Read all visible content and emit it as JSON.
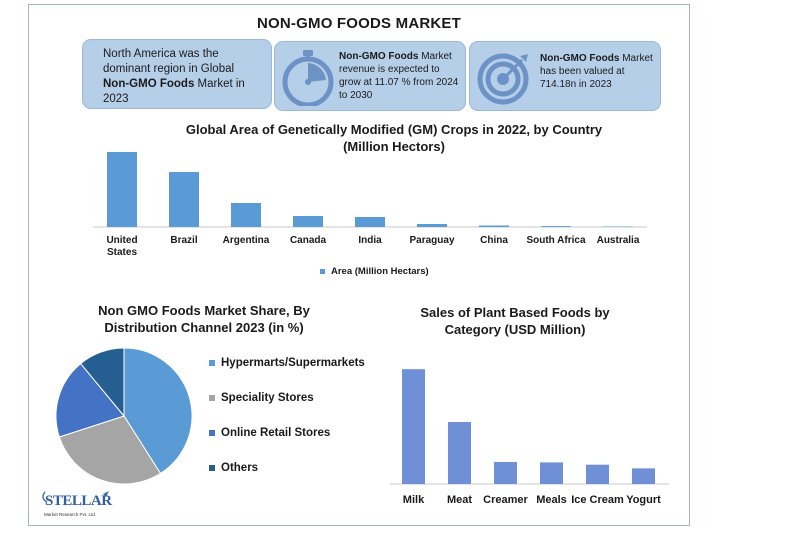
{
  "title": "NON-GMO FOODS MARKET",
  "cards": [
    {
      "prefix": "North America was the dominant region in Global ",
      "bold": "Non-GMO Foods",
      "suffix": " Market in 2023",
      "icon": "none"
    },
    {
      "prefix": "",
      "bold": "Non-GMO Foods",
      "suffix": " Market revenue is expected to grow at 11.07 % from 2024 to 2030",
      "icon": "stopwatch-icon"
    },
    {
      "prefix": "",
      "bold": "Non-GMO Foods",
      "suffix": " Market has been valued at 714.18n in 2023",
      "icon": "target-icon"
    }
  ],
  "colors": {
    "bar_primary": "#5b9bd5",
    "bar_secondary": "#6f8fd6",
    "card_bg": "#b6cfe9",
    "hypermarts": "#5b9bd5",
    "speciality": "#a5a5a5",
    "online": "#4472c4",
    "others": "#255e91"
  },
  "chart_data": [
    {
      "type": "bar",
      "title": "Global Area of Genetically Modified (GM) Crops in 2022, by Country (Million Hectors)",
      "categories": [
        "United States",
        "Brazil",
        "Argentina",
        "Canada",
        "India",
        "Paraguay",
        "China",
        "South Africa",
        "Australia"
      ],
      "series": [
        {
          "name": "Area (Million Hectars)",
          "values": [
            75,
            55,
            24,
            11,
            10,
            3,
            1.5,
            0.9,
            0.5
          ]
        }
      ],
      "ylim": [
        0,
        80
      ],
      "legend": "bottom",
      "grid": false
    },
    {
      "type": "pie",
      "title": "Non GMO Foods Market Share, By Distribution Channel  2023 (in %)",
      "labels": [
        "Hypermarts/Supermarkets",
        "Speciality Stores",
        "Online Retail Stores",
        "Others"
      ],
      "values": [
        41,
        29,
        19,
        11
      ],
      "legend": "right"
    },
    {
      "type": "bar",
      "title": "Sales of Plant Based Foods  by Category (USD Million)",
      "categories": [
        "Milk",
        "Meat",
        "Creamer",
        "Meals",
        "Ice Cream",
        "Yogurt"
      ],
      "values": [
        2500,
        1350,
        480,
        470,
        420,
        340
      ],
      "ylim": [
        0,
        2700
      ],
      "grid": false
    }
  ],
  "logo": {
    "name": "STELLAR",
    "tagline": "Market Research Pvt. Ltd."
  }
}
